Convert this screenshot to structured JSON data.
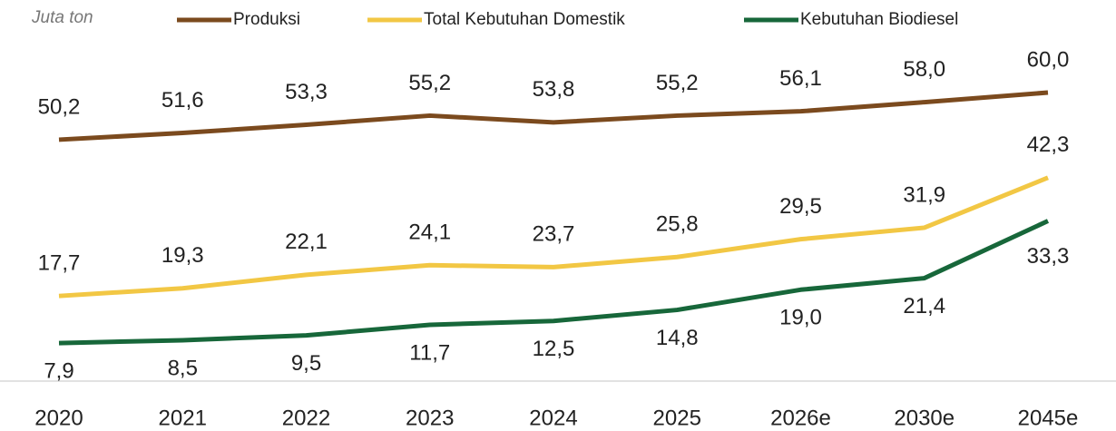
{
  "chart_data": {
    "type": "line",
    "unit_label": "Juta ton",
    "categories": [
      "2020",
      "2021",
      "2022",
      "2023",
      "2024",
      "2025",
      "2026e",
      "2030e",
      "2045e"
    ],
    "series": [
      {
        "name": "Produksi",
        "color": "#7b4a1e",
        "values": [
          50.2,
          51.6,
          53.3,
          55.2,
          53.8,
          55.2,
          56.1,
          58.0,
          60.0
        ],
        "value_labels": [
          "50,2",
          "51,6",
          "53,3",
          "55,2",
          "53,8",
          "55,2",
          "56,1",
          "58,0",
          "60,0"
        ]
      },
      {
        "name": "Total Kebutuhan Domestik",
        "color": "#f2c744",
        "values": [
          17.7,
          19.3,
          22.1,
          24.1,
          23.7,
          25.8,
          29.5,
          31.9,
          42.3
        ],
        "value_labels": [
          "17,7",
          "19,3",
          "22,1",
          "24,1",
          "23,7",
          "25,8",
          "29,5",
          "31,9",
          "42,3"
        ]
      },
      {
        "name": "Kebutuhan Biodiesel",
        "color": "#17673a",
        "values": [
          7.9,
          8.5,
          9.5,
          11.7,
          12.5,
          14.8,
          19.0,
          21.4,
          33.3
        ],
        "value_labels": [
          "7,9",
          "8,5",
          "9,5",
          "11,7",
          "12,5",
          "14,8",
          "19,0",
          "21,4",
          "33,3"
        ]
      }
    ],
    "ylim": [
      0,
      70
    ]
  }
}
